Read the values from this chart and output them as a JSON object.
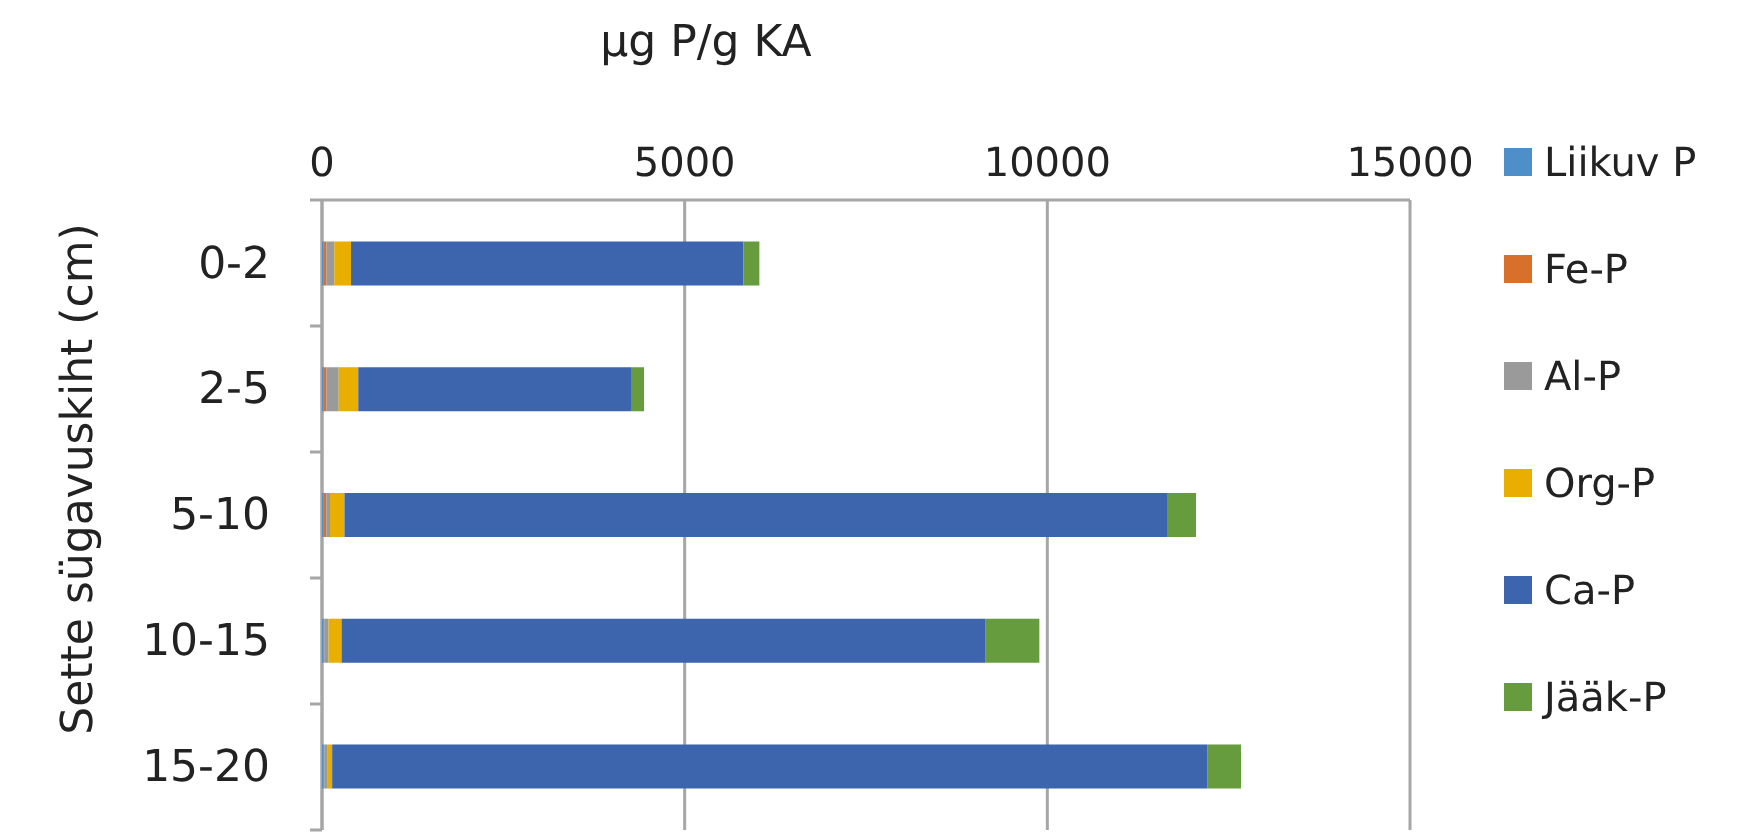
{
  "chart_data": {
    "type": "bar",
    "orientation": "horizontal",
    "stacked": true,
    "xlabel": "µg P/g KA",
    "ylabel": "Sette sügavuskiht (cm)",
    "categories": [
      "0-2",
      "2-5",
      "5-10",
      "10-15",
      "15-20"
    ],
    "series": [
      {
        "name": "Liikuv P",
        "color": "#4f8fc9",
        "values": [
          20,
          20,
          20,
          20,
          20
        ]
      },
      {
        "name": "Fe-P",
        "color": "#d8702c",
        "values": [
          40,
          40,
          40,
          10,
          10
        ]
      },
      {
        "name": "Al-P",
        "color": "#9a9a9a",
        "values": [
          110,
          170,
          50,
          60,
          40
        ]
      },
      {
        "name": "Org-P",
        "color": "#e8ae00",
        "values": [
          230,
          270,
          200,
          180,
          70
        ]
      },
      {
        "name": "Ca-P",
        "color": "#3d65ad",
        "values": [
          5410,
          3760,
          11340,
          8880,
          12070
        ]
      },
      {
        "name": "Jääk-P",
        "color": "#669c3e",
        "values": [
          220,
          180,
          400,
          740,
          460
        ]
      }
    ],
    "xlim": [
      0,
      15000
    ],
    "xticks": [
      0,
      5000,
      10000,
      15000
    ],
    "grid": "x",
    "legend": "right"
  }
}
